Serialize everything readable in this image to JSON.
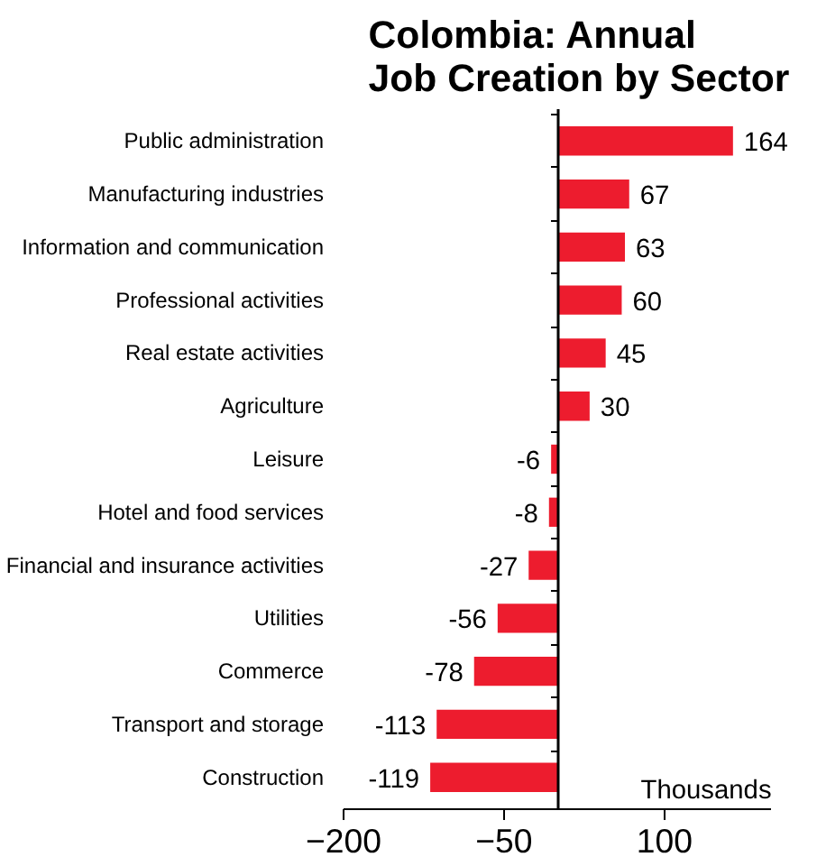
{
  "chart_data": {
    "type": "bar",
    "orientation": "horizontal",
    "title": "Colombia: Annual\nJob Creation by Sector",
    "categories": [
      "Public administration",
      "Manufacturing industries",
      "Information and communication",
      "Professional activities",
      "Real estate activities",
      "Agriculture",
      "Leisure",
      "Hotel and food services",
      "Financial and insurance activities",
      "Utilities",
      "Commerce",
      "Transport and storage",
      "Construction"
    ],
    "values": [
      164,
      67,
      63,
      60,
      45,
      30,
      -6,
      -8,
      -27,
      -56,
      -78,
      -113,
      -119
    ],
    "color": "#ed1c2e",
    "data_labels": true,
    "xlim": [
      -200,
      200
    ],
    "xticks": [
      -200,
      -50,
      100
    ],
    "grid": false,
    "annotations": [
      "Thousands"
    ]
  }
}
